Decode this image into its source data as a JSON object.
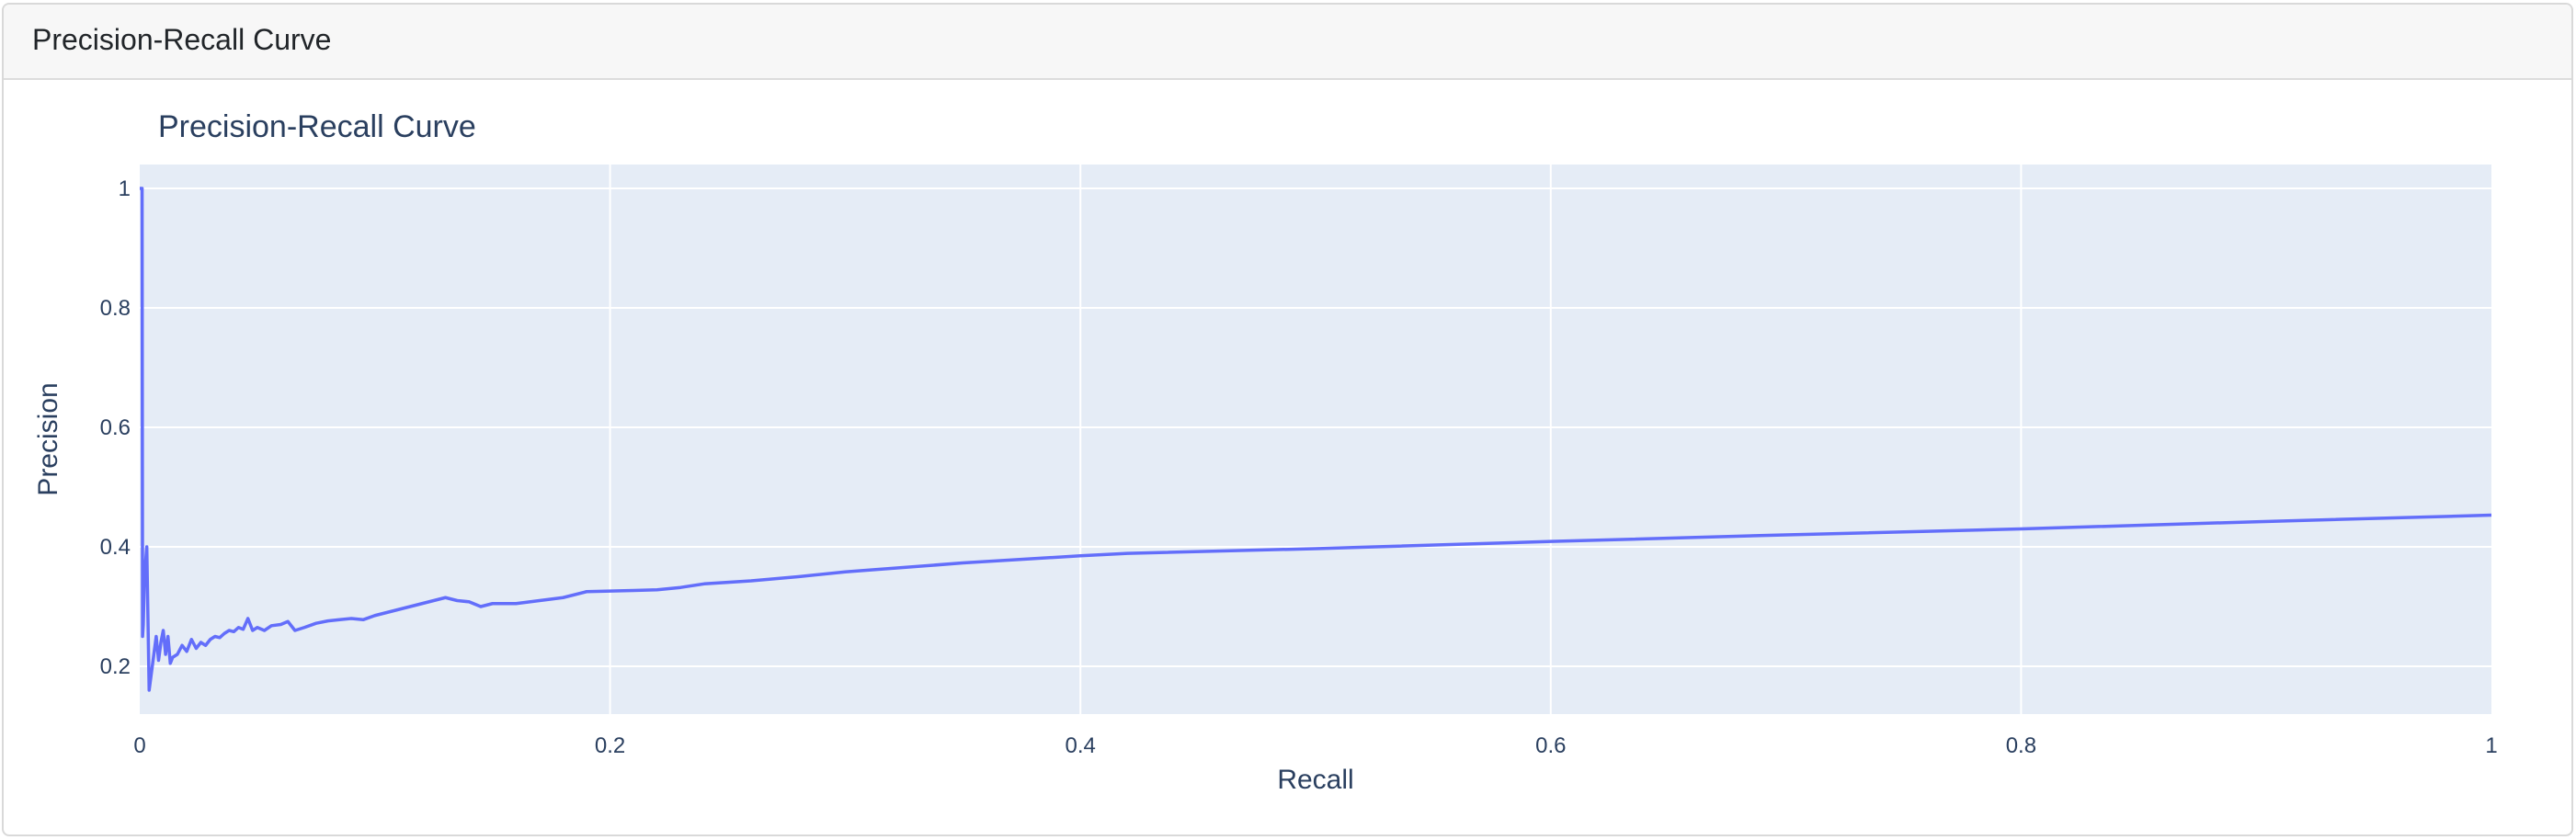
{
  "card": {
    "header_title": "Precision-Recall Curve"
  },
  "colors": {
    "plot_background": "#e5ecf6",
    "grid": "#ffffff",
    "line": "#636efa",
    "text": "#2a3f5f"
  },
  "chart_data": {
    "type": "line",
    "title": "Precision-Recall Curve",
    "xlabel": "Recall",
    "ylabel": "Precision",
    "xlim": [
      0,
      1
    ],
    "ylim": [
      0.12,
      1.04
    ],
    "xticks": [
      0,
      0.2,
      0.4,
      0.6,
      0.8,
      1
    ],
    "xtick_labels": [
      "0",
      "0.2",
      "0.4",
      "0.6",
      "0.8",
      "1"
    ],
    "yticks": [
      0.2,
      0.4,
      0.6,
      0.8,
      1
    ],
    "ytick_labels": [
      "0.2",
      "0.4",
      "0.6",
      "0.8",
      "1"
    ],
    "grid": true,
    "legend": "none",
    "series": [
      {
        "x": [
          0.0,
          0.001,
          0.0012,
          0.0015,
          0.002,
          0.003,
          0.004,
          0.005,
          0.006,
          0.007,
          0.008,
          0.009,
          0.01,
          0.011,
          0.012,
          0.013,
          0.014,
          0.016,
          0.018,
          0.02,
          0.022,
          0.024,
          0.026,
          0.028,
          0.03,
          0.032,
          0.034,
          0.036,
          0.038,
          0.04,
          0.042,
          0.044,
          0.046,
          0.048,
          0.05,
          0.053,
          0.056,
          0.06,
          0.063,
          0.066,
          0.07,
          0.075,
          0.08,
          0.085,
          0.09,
          0.095,
          0.1,
          0.105,
          0.11,
          0.115,
          0.12,
          0.125,
          0.13,
          0.135,
          0.14,
          0.145,
          0.15,
          0.16,
          0.17,
          0.18,
          0.19,
          0.2,
          0.21,
          0.22,
          0.23,
          0.24,
          0.26,
          0.28,
          0.3,
          0.35,
          0.4,
          0.42,
          0.5,
          0.6,
          0.7,
          0.8,
          0.9,
          1.0
        ],
        "y": [
          1.0,
          1.0,
          0.25,
          0.27,
          0.35,
          0.4,
          0.16,
          0.19,
          0.22,
          0.25,
          0.21,
          0.24,
          0.26,
          0.22,
          0.25,
          0.205,
          0.215,
          0.22,
          0.235,
          0.225,
          0.245,
          0.23,
          0.24,
          0.235,
          0.245,
          0.25,
          0.248,
          0.255,
          0.26,
          0.258,
          0.265,
          0.262,
          0.28,
          0.26,
          0.265,
          0.26,
          0.268,
          0.27,
          0.275,
          0.26,
          0.265,
          0.272,
          0.276,
          0.278,
          0.28,
          0.278,
          0.285,
          0.29,
          0.295,
          0.3,
          0.305,
          0.31,
          0.315,
          0.31,
          0.308,
          0.3,
          0.305,
          0.305,
          0.31,
          0.315,
          0.325,
          0.326,
          0.327,
          0.328,
          0.332,
          0.338,
          0.343,
          0.35,
          0.358,
          0.373,
          0.385,
          0.389,
          0.397,
          0.409,
          0.42,
          0.43,
          0.442,
          0.453
        ]
      }
    ]
  }
}
